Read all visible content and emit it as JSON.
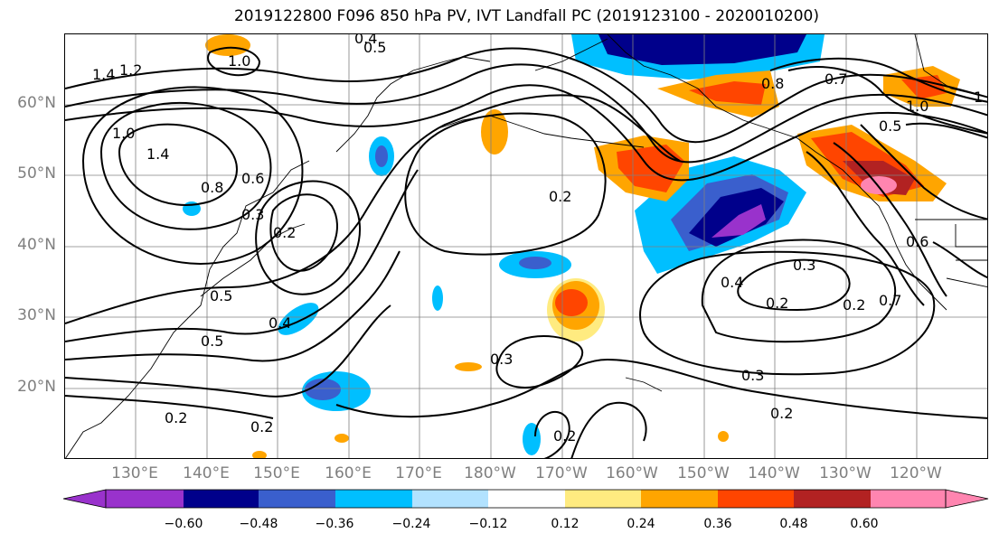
{
  "title": "2019122800 F096 850 hPa PV, IVT Landfall PC (2019123100 - 2020010200)",
  "map": {
    "lat_labels": [
      "60°N",
      "50°N",
      "40°N",
      "30°N",
      "20°N"
    ],
    "lon_labels": [
      "130°E",
      "140°E",
      "150°E",
      "160°E",
      "170°E",
      "180°W",
      "170°W",
      "160°W",
      "150°W",
      "140°W",
      "130°W",
      "120°W"
    ],
    "contour_labels": [
      "1.4",
      "1.2",
      "1.0",
      "1.4",
      "1.0",
      "0.5",
      "0.4",
      "0.8",
      "0.6",
      "0.3",
      "0.2",
      "0.5",
      "0.2",
      "0.2",
      "0.4",
      "0.5",
      "0.2",
      "0.2",
      "0.3",
      "0.2",
      "0.3",
      "0.2",
      "0.4",
      "0.3",
      "0.2",
      "0.6",
      "0.7",
      "1.0",
      "0.5",
      "0.8",
      "0.7",
      "1"
    ],
    "fill_colors": {
      "neg_extreme": "#9932cc",
      "neg_060": "#00008b",
      "neg_048": "#3a5fcd",
      "neg_036": "#00bfff",
      "neg_024": "#b2e2ff",
      "pos_012": "#ffeb80",
      "pos_024": "#ffa500",
      "pos_036": "#ff4500",
      "pos_048": "#b22222",
      "pos_extreme": "#ff85b0"
    }
  },
  "colorbar": {
    "ticks": [
      "−0.60",
      "−0.48",
      "−0.36",
      "−0.24",
      "−0.12",
      "0.12",
      "0.24",
      "0.36",
      "0.48",
      "0.60"
    ],
    "colors": [
      "#9932cc",
      "#00008b",
      "#3a5fcd",
      "#00bfff",
      "#b2e2ff",
      "#ffffff",
      "#ffeb80",
      "#ffa500",
      "#ff4500",
      "#b22222",
      "#ff85b0"
    ]
  }
}
